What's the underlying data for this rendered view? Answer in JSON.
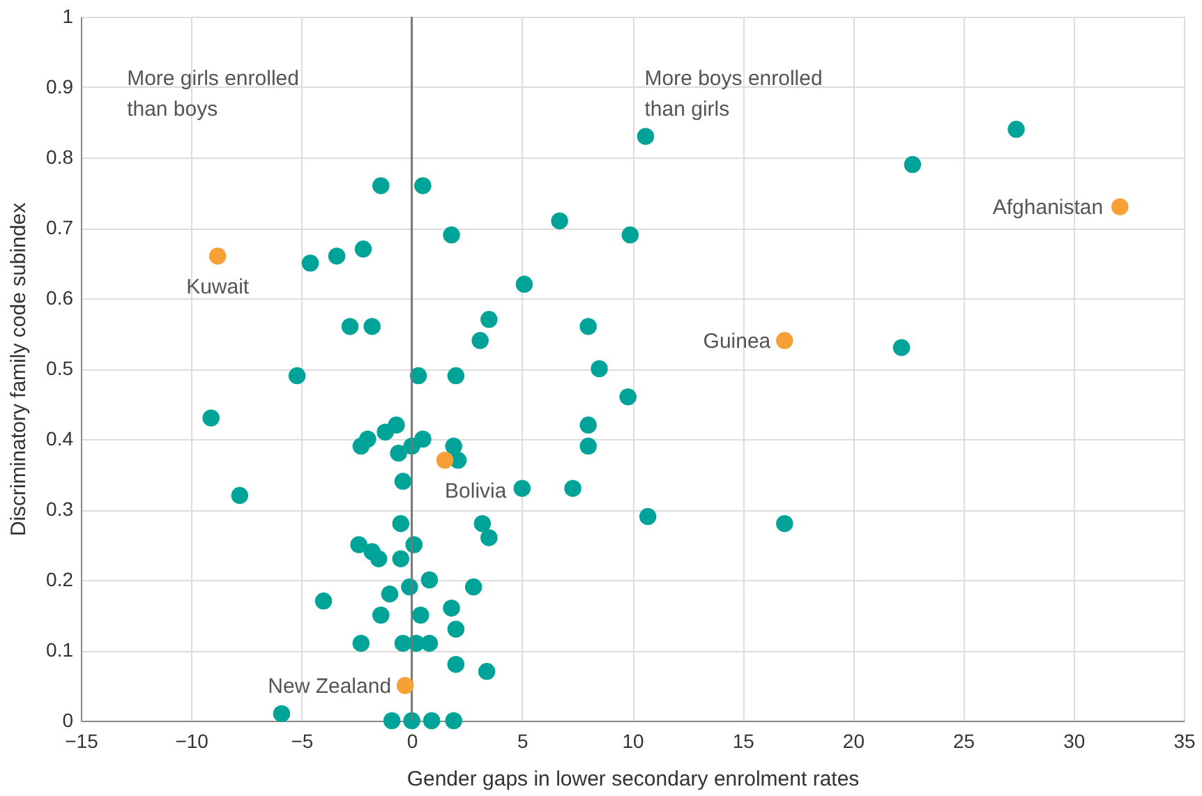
{
  "chart_data": {
    "type": "scatter",
    "xlabel": "Gender gaps in lower secondary enrolment rates",
    "ylabel": "Discriminatory family code subindex",
    "xlim": [
      -15,
      35
    ],
    "xticks": [
      -15,
      -10,
      -5,
      0,
      5,
      10,
      15,
      20,
      25,
      30,
      35
    ],
    "ylim": [
      0,
      1
    ],
    "yticks": [
      0,
      0.1,
      0.2,
      0.3,
      0.4,
      0.5,
      0.6,
      0.7,
      0.8,
      0.9,
      1
    ],
    "grid": true,
    "marker": "circle",
    "ref_lines": [
      {
        "axis": "x",
        "value": 0,
        "color": "#777777"
      }
    ],
    "series": [
      {
        "color": "#00a398",
        "x": [
          10.6,
          27.4,
          22.7,
          -1.4,
          0.5,
          6.7,
          1.8,
          9.9,
          -4.6,
          -3.4,
          -2.2,
          5.1,
          3.5,
          3.1,
          8.0,
          -2.8,
          -1.8,
          22.2,
          -5.2,
          0.3,
          2.0,
          8.5,
          9.8,
          -9.1,
          8.0,
          8.0,
          -7.8,
          7.3,
          5.0,
          10.7,
          16.9,
          -2.3,
          -2.0,
          -1.2,
          -0.7,
          -0.6,
          0.0,
          0.5,
          -0.4,
          1.9,
          2.1,
          3.2,
          3.5,
          -0.5,
          -2.4,
          -1.8,
          -1.5,
          -0.5,
          0.1,
          -4.0,
          -1.0,
          -0.1,
          0.8,
          2.8,
          -1.4,
          0.4,
          1.8,
          2.0,
          -2.3,
          -0.4,
          0.2,
          0.8,
          2.0,
          3.4,
          -5.9,
          -0.9,
          0.0,
          0.9,
          1.9
        ],
        "values": [
          0.83,
          0.84,
          0.79,
          0.76,
          0.76,
          0.71,
          0.69,
          0.69,
          0.65,
          0.66,
          0.67,
          0.62,
          0.57,
          0.54,
          0.56,
          0.56,
          0.56,
          0.53,
          0.49,
          0.49,
          0.49,
          0.5,
          0.46,
          0.43,
          0.42,
          0.39,
          0.32,
          0.33,
          0.33,
          0.29,
          0.28,
          0.39,
          0.4,
          0.41,
          0.42,
          0.38,
          0.39,
          0.4,
          0.34,
          0.39,
          0.37,
          0.28,
          0.26,
          0.28,
          0.25,
          0.24,
          0.23,
          0.23,
          0.25,
          0.17,
          0.18,
          0.19,
          0.2,
          0.19,
          0.15,
          0.15,
          0.16,
          0.13,
          0.11,
          0.11,
          0.11,
          0.11,
          0.08,
          0.07,
          0.01,
          0.0,
          0.0,
          0.0,
          0.0
        ]
      },
      {
        "color": "#f7a035",
        "x": [
          -8.8,
          -0.3,
          16.9,
          32.1,
          1.5
        ],
        "values": [
          0.66,
          0.05,
          0.54,
          0.73,
          0.37
        ]
      }
    ],
    "annotations": [
      "More girls enrolled\nthan boys",
      "More boys enrolled\nthan girls",
      {
        "text": "Kuwait",
        "x": -8.8,
        "y": 0.66
      },
      {
        "text": "New Zealand",
        "x": -0.3,
        "y": 0.05
      },
      {
        "text": "Guinea",
        "x": 16.9,
        "y": 0.54
      },
      {
        "text": "Afghanistan",
        "x": 32.1,
        "y": 0.73
      },
      {
        "text": "Bolivia",
        "x": 1.5,
        "y": 0.37
      }
    ]
  }
}
